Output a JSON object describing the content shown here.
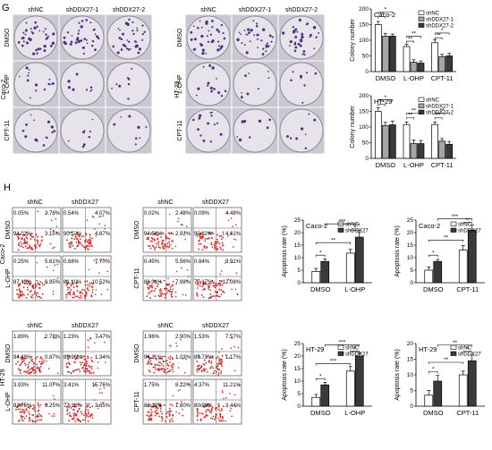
{
  "panel_labels": {
    "g": "G",
    "h": "H"
  },
  "colony_grid_a": {
    "columns": [
      "shNC",
      "shDDX27-1",
      "shDDX27-2"
    ],
    "rows": [
      "DMSO",
      "L-OHP",
      "CPT-11"
    ],
    "cell_line": "Caco-2"
  },
  "colony_grid_b": {
    "columns": [
      "shNC",
      "shDDX27-1",
      "shDDX27-2"
    ],
    "rows": [
      "DMSO",
      "L-OHP",
      "CPT-11"
    ],
    "cell_line": "HT-29"
  },
  "flow_blocks": [
    {
      "cell_line": "Caco-2",
      "columns": [
        "shNC",
        "shDDX27",
        "shNC",
        "shDDX27"
      ],
      "rows": [
        {
          "label": "DMSO",
          "right_label": "DMSO",
          "plots": [
            [
              "0.05%",
              "2.78%",
              "94.02%",
              "3.15%"
            ],
            [
              "0.54%",
              "4.07%",
              "90.52%",
              "4.87%"
            ],
            [
              "0.02%",
              "2.48%",
              "94.58%",
              "2.92%"
            ],
            [
              "0.09%",
              "4.48%",
              "90.82%",
              "4.61%"
            ]
          ]
        },
        {
          "label": "L-OHP",
          "right_label": "CPT-11",
          "plots": [
            [
              "0.25%",
              "5.61%",
              "87.19%",
              "6.95%"
            ],
            [
              "0.68%",
              "7.70%",
              "81.10%",
              "10.52%"
            ],
            [
              "0.45%",
              "5.56%",
              "86.01%",
              "7.98%"
            ],
            [
              "0.84%",
              "9.91%",
              "77.17%",
              "12.08%"
            ]
          ]
        }
      ]
    },
    {
      "cell_line": "HT-29",
      "columns": [
        "shNC",
        "shDDX27",
        "shNC",
        "shDDX27"
      ],
      "rows": [
        {
          "label": "DMSO",
          "right_label": "DMSO",
          "plots": [
            [
              "1.89%",
              "2.78%",
              "94.48%",
              "0.87%"
            ],
            [
              "1.23%",
              "7.47%",
              "89.96%",
              "1.34%"
            ],
            [
              "1.96%",
              "2.90%",
              "94.11%",
              "1.03%"
            ],
            [
              "1.53%",
              "7.57%",
              "89.73%",
              "1.17%"
            ]
          ]
        },
        {
          "label": "L-OHP",
          "right_label": "CPT-11",
          "plots": [
            [
              "3.93%",
              "11.07%",
              "81.75%",
              "3.25%"
            ],
            [
              "3.41%",
              "15.76%",
              "77.18%",
              "3.65%"
            ],
            [
              "1.75%",
              "8.22%",
              "88.23%",
              "1.80%"
            ],
            [
              "4.37%",
              "11.21%",
              "80.98%",
              "3.44%"
            ]
          ]
        }
      ]
    }
  ],
  "chart_data": [
    {
      "type": "bar",
      "title": "Caco-2",
      "xlabel": "",
      "ylabel": "Colony number",
      "categories": [
        "DMSO",
        "L-OHP",
        "CPT-11"
      ],
      "yticks": [
        0,
        50,
        100,
        150,
        200
      ],
      "ylim": [
        0,
        200
      ],
      "series": [
        {
          "name": "shNC",
          "fill": "#ffffff",
          "values": [
            150,
            80,
            92
          ],
          "errors": [
            10,
            8,
            9
          ]
        },
        {
          "name": "shDDX27-1",
          "fill": "#a6a6a6",
          "values": [
            113,
            30,
            48
          ],
          "errors": [
            9,
            8,
            7
          ]
        },
        {
          "name": "shDDX27-2",
          "fill": "#3a3a3a",
          "values": [
            113,
            27,
            50
          ],
          "errors": [
            7,
            7,
            8
          ]
        }
      ],
      "annotations": [
        {
          "text": "**",
          "from": [
            0,
            0
          ],
          "to": [
            0,
            1
          ],
          "level": 175
        },
        {
          "text": "*",
          "from": [
            0,
            0
          ],
          "to": [
            0,
            2
          ],
          "level": 190
        },
        {
          "text": "**",
          "from": [
            1,
            0
          ],
          "to": [
            1,
            1
          ],
          "level": 97
        },
        {
          "text": "**",
          "from": [
            1,
            0
          ],
          "to": [
            1,
            2
          ],
          "level": 113
        },
        {
          "text": "**",
          "from": [
            2,
            0
          ],
          "to": [
            2,
            1
          ],
          "level": 108
        },
        {
          "text": "*",
          "from": [
            2,
            0
          ],
          "to": [
            2,
            2
          ],
          "level": 123
        }
      ]
    },
    {
      "type": "bar",
      "title": "HT-29",
      "xlabel": "",
      "ylabel": "Colony number",
      "categories": [
        "DMSO",
        "L-OHP",
        "CPT-11"
      ],
      "yticks": [
        0,
        50,
        100,
        150,
        200
      ],
      "ylim": [
        0,
        200
      ],
      "series": [
        {
          "name": "shNC",
          "fill": "#ffffff",
          "values": [
            150,
            108,
            108
          ],
          "errors": [
            12,
            8,
            8
          ]
        },
        {
          "name": "shDDX27-1",
          "fill": "#a6a6a6",
          "values": [
            105,
            47,
            55
          ],
          "errors": [
            10,
            12,
            8
          ]
        },
        {
          "name": "shDDX27-2",
          "fill": "#3a3a3a",
          "values": [
            107,
            47,
            45
          ],
          "errors": [
            12,
            10,
            9
          ]
        }
      ],
      "annotations": [
        {
          "text": "**",
          "from": [
            0,
            0
          ],
          "to": [
            0,
            1
          ],
          "level": 172
        },
        {
          "text": "*",
          "from": [
            0,
            0
          ],
          "to": [
            0,
            2
          ],
          "level": 187
        },
        {
          "text": "**",
          "from": [
            1,
            0
          ],
          "to": [
            1,
            1
          ],
          "level": 130
        },
        {
          "text": "**",
          "from": [
            1,
            0
          ],
          "to": [
            1,
            2
          ],
          "level": 145
        },
        {
          "text": "**",
          "from": [
            2,
            0
          ],
          "to": [
            2,
            1
          ],
          "level": 130
        },
        {
          "text": "**",
          "from": [
            2,
            0
          ],
          "to": [
            2,
            2
          ],
          "level": 145
        }
      ]
    },
    {
      "type": "bar",
      "title": "Caco-2",
      "xlabel": "",
      "ylabel": "Apoptosis rate (%)",
      "categories": [
        "DMSO",
        "L-OHP"
      ],
      "yticks": [
        0,
        5,
        10,
        15,
        20,
        25
      ],
      "ylim": [
        0,
        25
      ],
      "series": [
        {
          "name": "shNC",
          "fill": "#ffffff",
          "values": [
            4.5,
            11.8
          ],
          "errors": [
            1.2,
            1.5
          ]
        },
        {
          "name": "shDDX27",
          "fill": "#3a3a3a",
          "values": [
            8.5,
            18.2
          ],
          "errors": [
            1.0,
            1.8
          ]
        }
      ],
      "annotations": [
        {
          "text": "*",
          "from": [
            0,
            0
          ],
          "to": [
            0,
            1
          ],
          "level": 11
        },
        {
          "text": "*",
          "from": [
            1,
            0
          ],
          "to": [
            1,
            1
          ],
          "level": 21
        },
        {
          "text": "**",
          "from": [
            0,
            0
          ],
          "to": [
            1,
            0
          ],
          "level": 16
        },
        {
          "text": "***",
          "from": [
            0,
            1
          ],
          "to": [
            1,
            1
          ],
          "level": 23.5
        }
      ]
    },
    {
      "type": "bar",
      "title": "Caco-2",
      "xlabel": "",
      "ylabel": "Apoptosis rate (%)",
      "categories": [
        "DMSO",
        "CPT-11"
      ],
      "yticks": [
        0,
        5,
        10,
        15,
        20,
        25
      ],
      "ylim": [
        0,
        25
      ],
      "series": [
        {
          "name": "shNC",
          "fill": "#ffffff",
          "values": [
            5.0,
            13.0
          ],
          "errors": [
            1.3,
            1.8
          ]
        },
        {
          "name": "shDDX27",
          "fill": "#3a3a3a",
          "values": [
            8.5,
            21.0
          ],
          "errors": [
            0.8,
            2.0
          ]
        }
      ],
      "annotations": [
        {
          "text": "*",
          "from": [
            0,
            0
          ],
          "to": [
            0,
            1
          ],
          "level": 11
        },
        {
          "text": "**",
          "from": [
            1,
            0
          ],
          "to": [
            1,
            1
          ],
          "level": 24
        },
        {
          "text": "**",
          "from": [
            0,
            0
          ],
          "to": [
            1,
            0
          ],
          "level": 17
        },
        {
          "text": "***",
          "from": [
            0,
            1
          ],
          "to": [
            1,
            1
          ],
          "level": 25.5
        }
      ]
    },
    {
      "type": "bar",
      "title": "HT-29",
      "xlabel": "",
      "ylabel": "Apoptosis rate (%)",
      "categories": [
        "DMSO",
        "L-OHP"
      ],
      "yticks": [
        0,
        5,
        10,
        15,
        20,
        25
      ],
      "ylim": [
        0,
        25
      ],
      "series": [
        {
          "name": "shNC",
          "fill": "#ffffff",
          "values": [
            3.5,
            14.0
          ],
          "errors": [
            1.2,
            1.8
          ]
        },
        {
          "name": "shDDX27",
          "fill": "#3a3a3a",
          "values": [
            8.5,
            20.0
          ],
          "errors": [
            1.0,
            1.2
          ]
        }
      ],
      "annotations": [
        {
          "text": "*",
          "from": [
            0,
            0
          ],
          "to": [
            0,
            1
          ],
          "level": 11
        },
        {
          "text": "*",
          "from": [
            1,
            0
          ],
          "to": [
            1,
            1
          ],
          "level": 22
        },
        {
          "text": "***",
          "from": [
            0,
            0
          ],
          "to": [
            1,
            0
          ],
          "level": 17
        },
        {
          "text": "***",
          "from": [
            0,
            1
          ],
          "to": [
            1,
            1
          ],
          "level": 24.5
        }
      ]
    },
    {
      "type": "bar",
      "title": "HT-29",
      "xlabel": "",
      "ylabel": "Apoptosis rate (%)",
      "categories": [
        "DMSO",
        "CPT-11"
      ],
      "yticks": [
        0,
        5,
        10,
        15,
        20
      ],
      "ylim": [
        0,
        20
      ],
      "series": [
        {
          "name": "shNC",
          "fill": "#ffffff",
          "values": [
            3.5,
            10.0
          ],
          "errors": [
            1.5,
            1.2
          ]
        },
        {
          "name": "shDDX27",
          "fill": "#3a3a3a",
          "values": [
            8.0,
            14.5
          ],
          "errors": [
            1.8,
            1.8
          ]
        }
      ],
      "annotations": [
        {
          "text": "*",
          "from": [
            0,
            0
          ],
          "to": [
            0,
            1
          ],
          "level": 11
        },
        {
          "text": "*",
          "from": [
            1,
            0
          ],
          "to": [
            1,
            1
          ],
          "level": 17.5
        },
        {
          "text": "**",
          "from": [
            0,
            0
          ],
          "to": [
            1,
            0
          ],
          "level": 14
        },
        {
          "text": "**",
          "from": [
            0,
            1
          ],
          "to": [
            1,
            1
          ],
          "level": 19.5
        }
      ]
    }
  ]
}
